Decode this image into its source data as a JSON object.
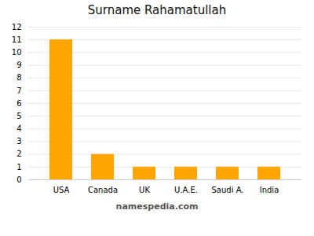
{
  "chart_data": {
    "type": "bar",
    "title": "Surname Rahamatullah",
    "categories": [
      "USA",
      "Canada",
      "UK",
      "U.A.E.",
      "Saudi A.",
      "India"
    ],
    "values": [
      11,
      2,
      1,
      1,
      1,
      1
    ],
    "color": "#FFA500",
    "ylim": [
      0,
      12
    ],
    "yticks": [
      0,
      1,
      2,
      3,
      4,
      5,
      6,
      7,
      8,
      9,
      10,
      11,
      12
    ],
    "grid": true,
    "caption": "namespedia.com"
  }
}
